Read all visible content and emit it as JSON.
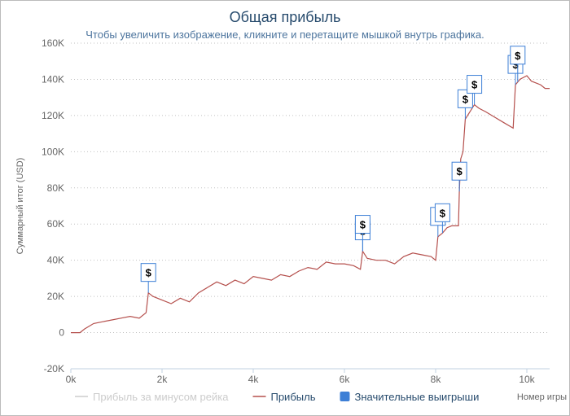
{
  "chart_data": {
    "type": "line",
    "title": "Общая прибыль",
    "subtitle": "Чтобы увеличить изображение, кликните и перетащите мышкой внутрь графика.",
    "y_axis_title": "Суммарный итог (USD)",
    "x_axis_title": "Номер игры",
    "xlim": [
      0,
      10500
    ],
    "xticks": [
      {
        "value": 0,
        "label": "0k"
      },
      {
        "value": 2000,
        "label": "2k"
      },
      {
        "value": 4000,
        "label": "4k"
      },
      {
        "value": 6000,
        "label": "6k"
      },
      {
        "value": 8000,
        "label": "8k"
      },
      {
        "value": 10000,
        "label": "10k"
      }
    ],
    "ylim": [
      -20000,
      160000
    ],
    "yticks": [
      {
        "value": -20000,
        "label": "-20K"
      },
      0,
      {
        "value": 20000,
        "label": "20K"
      },
      {
        "value": 40000,
        "label": "40K"
      },
      {
        "value": 60000,
        "label": "60K"
      },
      {
        "value": 80000,
        "label": "80K"
      },
      {
        "value": 100000,
        "label": "100K"
      },
      {
        "value": 120000,
        "label": "120K"
      },
      {
        "value": 140000,
        "label": "140K"
      },
      {
        "value": 160000,
        "label": "160K"
      }
    ],
    "grid": true,
    "series": [
      {
        "name": "Прибыль за минусом рейка",
        "color": "#cccccc",
        "visible": false
      },
      {
        "name": "Прибыль",
        "color": "#b5504d",
        "visible": true,
        "x": [
          0,
          200,
          300,
          500,
          700,
          900,
          1100,
          1300,
          1500,
          1650,
          1700,
          1800,
          2000,
          2200,
          2400,
          2600,
          2800,
          3000,
          3200,
          3400,
          3600,
          3800,
          4000,
          4200,
          4400,
          4600,
          4800,
          5000,
          5200,
          5400,
          5600,
          5800,
          6000,
          6200,
          6350,
          6400,
          6500,
          6700,
          6900,
          7100,
          7300,
          7500,
          7700,
          7900,
          8000,
          8050,
          8150,
          8250,
          8350,
          8500,
          8520,
          8550,
          8600,
          8650,
          8750,
          8850,
          8950,
          9100,
          9300,
          9500,
          9700,
          9750,
          9850,
          10000,
          10100,
          10300,
          10400,
          10500
        ],
        "values": [
          0,
          0,
          2000,
          5000,
          6000,
          7000,
          8000,
          9000,
          8000,
          11000,
          22000,
          20000,
          18000,
          16000,
          19000,
          17000,
          22000,
          25000,
          28000,
          26000,
          29000,
          27000,
          31000,
          30000,
          29000,
          32000,
          31000,
          34000,
          36000,
          35000,
          39000,
          38000,
          38000,
          37000,
          35000,
          45000,
          41000,
          40000,
          40000,
          38000,
          42000,
          44000,
          43000,
          42000,
          40000,
          53000,
          55000,
          58000,
          59000,
          59000,
          78000,
          96000,
          100000,
          118000,
          122000,
          126000,
          124000,
          122000,
          119000,
          116000,
          113000,
          137000,
          140000,
          142000,
          139000,
          137000,
          135000,
          135000
        ]
      }
    ],
    "flags": {
      "name": "Значительные выигрыши",
      "color": "#3d7fd6",
      "x": [
        1700,
        6400,
        6400,
        8050,
        8150,
        8520,
        8650,
        8850,
        9750,
        9800
      ],
      "titles": [
        "$",
        "$",
        "$",
        "$",
        "$",
        "$",
        "$",
        "$",
        "$",
        "$"
      ]
    }
  }
}
